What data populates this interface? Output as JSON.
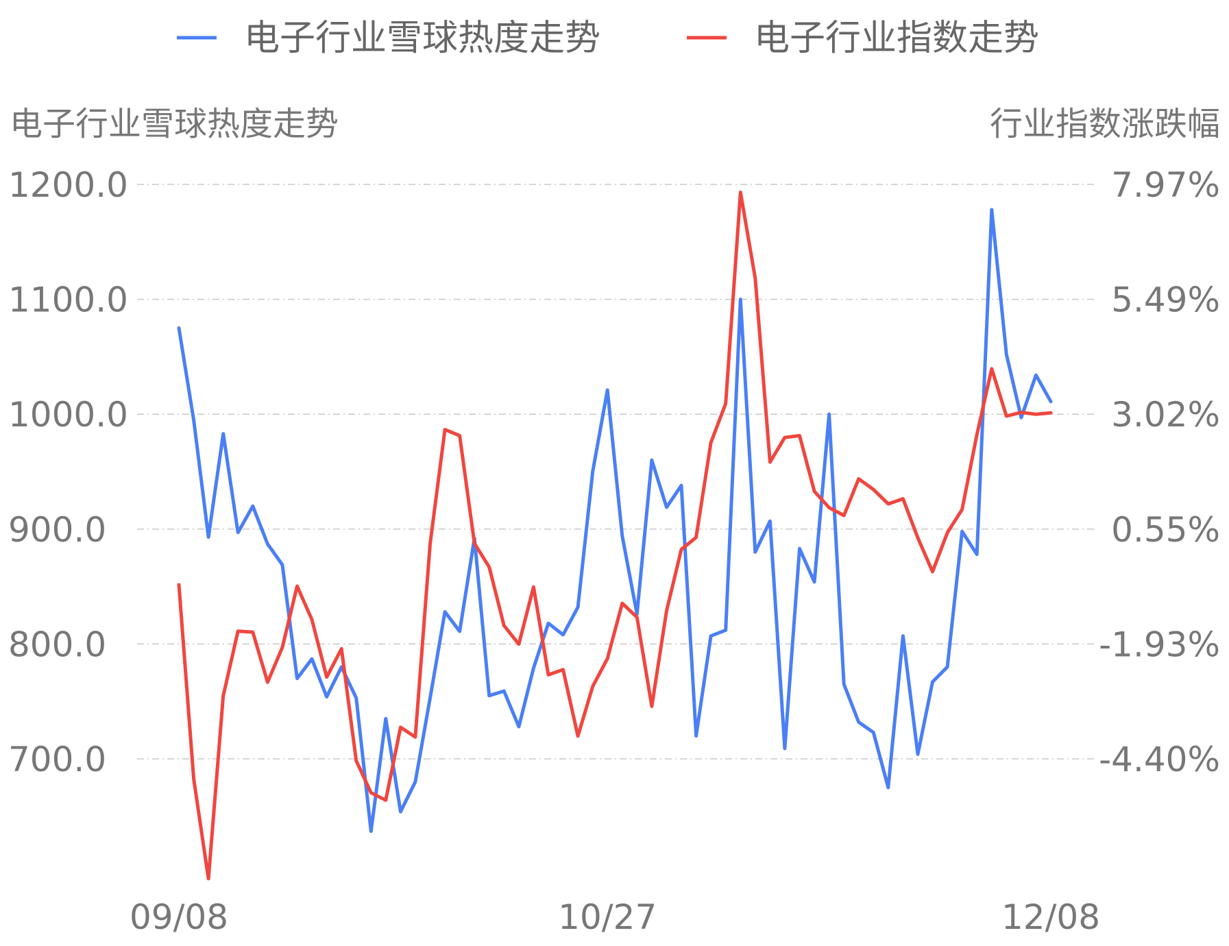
{
  "chart_data": {
    "type": "line",
    "legend": {
      "placement": "top-center",
      "items": [
        {
          "label": "电子行业雪球热度走势",
          "color": "#4A7FF5"
        },
        {
          "label": "电子行业指数走势",
          "color": "#F0463F"
        }
      ]
    },
    "left_axis": {
      "title": "电子行业雪球热度走势",
      "ticks": [
        "1200.0",
        "1100.0",
        "1000.0",
        "900.0",
        "800.0",
        "700.0"
      ],
      "tick_values": [
        1200,
        1100,
        1000,
        900,
        800,
        700
      ],
      "range": [
        700,
        1200
      ]
    },
    "right_axis": {
      "title": "行业指数涨跌幅",
      "ticks": [
        "7.97%",
        "5.49%",
        "3.02%",
        "0.55%",
        "-1.93%",
        "-4.40%"
      ],
      "tick_values": [
        7.97,
        5.49,
        3.02,
        0.55,
        -1.93,
        -4.4
      ],
      "range": [
        -4.4,
        7.97
      ]
    },
    "x_axis": {
      "labels": [
        {
          "index": 0,
          "text": "09/08"
        },
        {
          "index": 29,
          "text": "10/27"
        },
        {
          "index": 59,
          "text": "12/08"
        }
      ]
    },
    "grid": true,
    "series": [
      {
        "name": "电子行业雪球热度走势",
        "axis": "left",
        "color": "#4A7FF5",
        "values": [
          1075,
          995,
          893,
          983,
          897,
          920,
          887,
          869,
          770,
          787,
          754,
          780,
          753,
          637,
          735,
          654,
          680,
          753,
          828,
          811,
          892,
          755,
          759,
          728,
          779,
          818,
          808,
          832,
          950,
          1021,
          894,
          826,
          960,
          919,
          938,
          720,
          807,
          812,
          1100,
          880,
          907,
          709,
          883,
          854,
          1000,
          765,
          732,
          723,
          675,
          807,
          704,
          767,
          780,
          898,
          878,
          1178,
          1052,
          997,
          1034,
          1011
        ]
      },
      {
        "name": "电子行业指数走势",
        "axis": "right",
        "color": "#F0463F",
        "values": [
          -0.65,
          -4.83,
          -6.98,
          -3.04,
          -1.65,
          -1.67,
          -2.75,
          -2.0,
          -0.68,
          -1.4,
          -2.64,
          -2.03,
          -4.44,
          -5.13,
          -5.29,
          -3.72,
          -3.93,
          0.23,
          2.69,
          2.56,
          0.24,
          -0.27,
          -1.53,
          -1.93,
          -0.7,
          -2.59,
          -2.48,
          -3.91,
          -2.84,
          -2.24,
          -1.05,
          -1.35,
          -3.27,
          -1.21,
          0.11,
          0.37,
          2.41,
          3.25,
          7.8,
          5.95,
          1.99,
          2.52,
          2.56,
          1.36,
          1.01,
          0.84,
          1.63,
          1.4,
          1.09,
          1.2,
          0.36,
          -0.37,
          0.47,
          0.97,
          2.58,
          4.0,
          2.98,
          3.06,
          3.02,
          3.05
        ]
      }
    ]
  }
}
